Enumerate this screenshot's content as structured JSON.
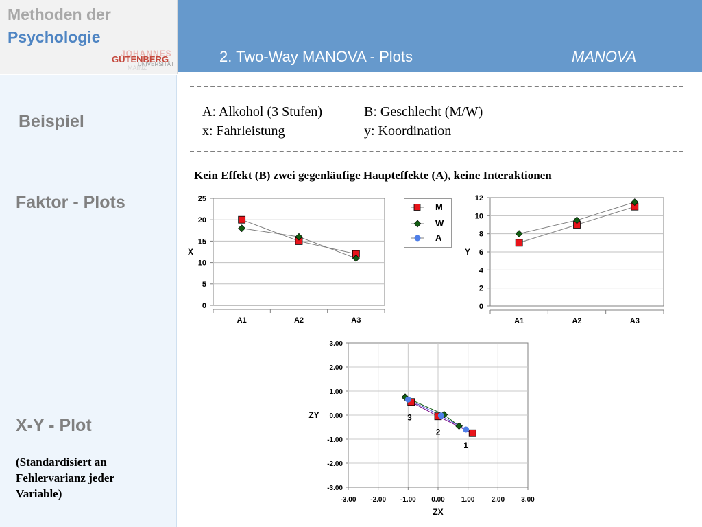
{
  "logo": {
    "line1": "Methoden der",
    "line2": "Psychologie",
    "university_top": "JOHANNES",
    "university_main": "GUTENBERG",
    "university_sub": "UNIVERSITÄT",
    "university_city": "MAINZ"
  },
  "header": {
    "title": "2. Two-Way MANOVA  - Plots",
    "subtitle": "MANOVA",
    "bar_color": "#6699cc"
  },
  "sidebar": {
    "beispiel": "Beispiel",
    "faktor_plots": "Faktor - Plots",
    "xy_plot": "X-Y - Plot",
    "note": "(Standardisiert an Fehlervarianz jeder Variable)"
  },
  "definitions": {
    "a": "A: Alkohol (3 Stufen)",
    "b": "B: Geschlecht (M/W)",
    "x": "x: Fahrleistung",
    "y": "y: Koordination"
  },
  "plots_title": "Kein Effekt (B) zwei gegenläufige Haupteffekte (A), keine Interaktionen",
  "legend": {
    "m": "M",
    "w": "W",
    "a": "A"
  },
  "colors": {
    "M": "#e8141a",
    "W": "#125c12",
    "A": "#4f7fe8"
  },
  "chart_data": [
    {
      "type": "line",
      "categories": [
        "A1",
        "A2",
        "A3"
      ],
      "ylabel": "X",
      "ylim": [
        0,
        25
      ],
      "yticks": [
        0,
        5,
        10,
        15,
        20,
        25
      ],
      "series": [
        {
          "name": "M",
          "values": [
            20,
            15,
            12
          ]
        },
        {
          "name": "W",
          "values": [
            18,
            16,
            11
          ]
        }
      ]
    },
    {
      "type": "line",
      "categories": [
        "A1",
        "A2",
        "A3"
      ],
      "ylabel": "Y",
      "ylim": [
        0,
        12
      ],
      "yticks": [
        0,
        2,
        4,
        6,
        8,
        10,
        12
      ],
      "series": [
        {
          "name": "M",
          "values": [
            7,
            9,
            11
          ]
        },
        {
          "name": "W",
          "values": [
            8,
            9.5,
            11.5
          ]
        }
      ]
    },
    {
      "type": "scatter",
      "xlabel": "ZX",
      "ylabel": "ZY",
      "xlim": [
        -3,
        3
      ],
      "ylim": [
        -3,
        3
      ],
      "ticks": [
        "-3.00",
        "-2.00",
        "-1.00",
        "0.00",
        "1.00",
        "2.00",
        "3.00"
      ],
      "grid": true,
      "series": [
        {
          "name": "M",
          "points": [
            [
              1.15,
              -0.75
            ],
            [
              0,
              -0.05
            ],
            [
              -0.9,
              0.55
            ]
          ]
        },
        {
          "name": "W",
          "points": [
            [
              0.7,
              -0.45
            ],
            [
              0.2,
              0.02
            ],
            [
              -1.1,
              0.75
            ]
          ]
        },
        {
          "name": "A",
          "points": [
            [
              0.93,
              -0.6
            ],
            [
              0.1,
              -0.02
            ],
            [
              -1.0,
              0.65
            ]
          ]
        }
      ],
      "point_labels": [
        {
          "text": "1",
          "x": 0.93,
          "y": -1.25
        },
        {
          "text": "2",
          "x": 0.0,
          "y": -0.7
        },
        {
          "text": "3",
          "x": -0.95,
          "y": -0.1
        }
      ]
    }
  ]
}
